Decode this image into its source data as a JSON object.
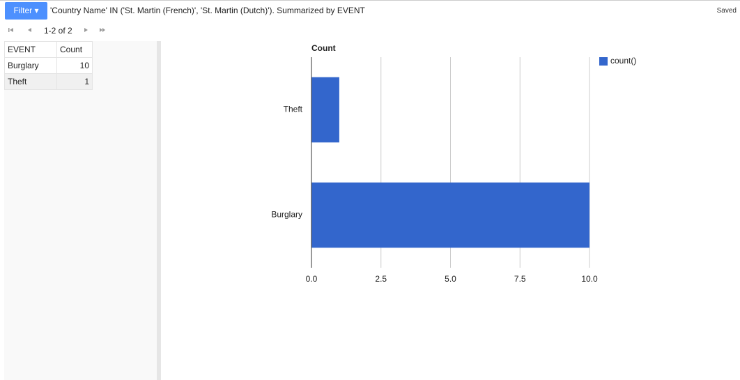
{
  "toolbar": {
    "filter_button": "Filter",
    "filter_text": "'Country Name' IN ('St. Martin (French)', 'St. Martin (Dutch)'). Summarized by EVENT",
    "status": "Saved"
  },
  "pagination": {
    "range": "1-2 of 2"
  },
  "table": {
    "columns": [
      "EVENT",
      "Count"
    ],
    "rows": [
      [
        "Burglary",
        10
      ],
      [
        "Theft",
        1
      ]
    ]
  },
  "chart_data": {
    "type": "bar",
    "orientation": "horizontal",
    "title": "Count",
    "categories": [
      "Theft",
      "Burglary"
    ],
    "series": [
      {
        "name": "count()",
        "color": "#3366cc",
        "values": [
          1,
          10
        ]
      }
    ],
    "xlim": [
      0,
      10
    ],
    "xticks": [
      {
        "value": 0,
        "label": "0.0"
      },
      {
        "value": 2.5,
        "label": "2.5"
      },
      {
        "value": 5,
        "label": "5.0"
      },
      {
        "value": 7.5,
        "label": "7.5"
      },
      {
        "value": 10,
        "label": "10.0"
      }
    ],
    "grid": true,
    "legend": "right"
  }
}
